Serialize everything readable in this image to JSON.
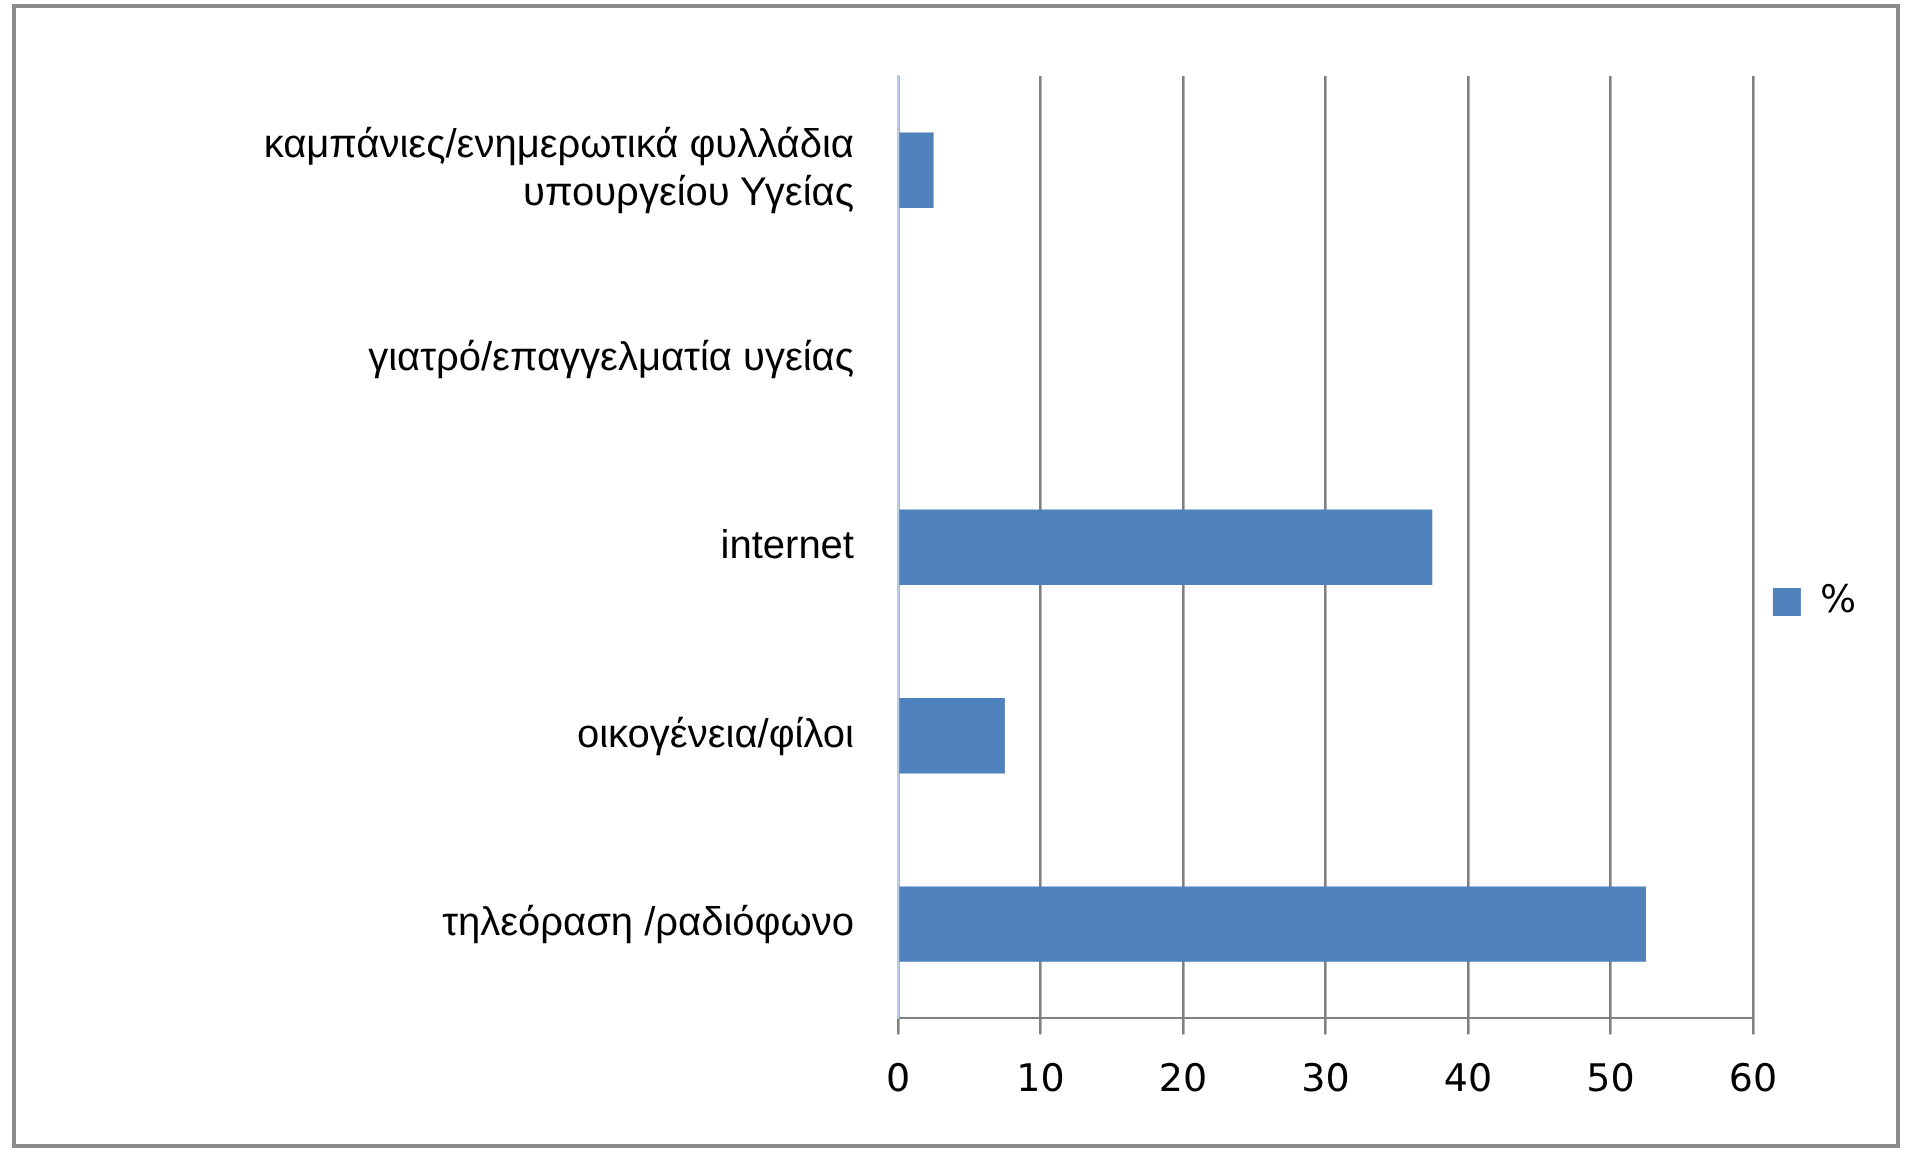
{
  "chart_data": {
    "type": "bar",
    "orientation": "horizontal",
    "categories": [
      "καμπάνιες/ενημερωτικά φυλλάδια υπουργείου Υγείας",
      "γιατρό/επαγγελματία υγείας",
      "internet",
      "οικογένεια/φίλοι",
      "τηλεόραση /ραδιόφωνο"
    ],
    "series": [
      {
        "name": "%",
        "color": "#4f81bd",
        "values": [
          2.5,
          0,
          37.5,
          7.5,
          52.5
        ]
      }
    ],
    "xlim": [
      0,
      60
    ],
    "xticks": [
      0,
      10,
      20,
      30,
      40,
      50,
      60
    ],
    "grid": "x",
    "legend": "right"
  }
}
